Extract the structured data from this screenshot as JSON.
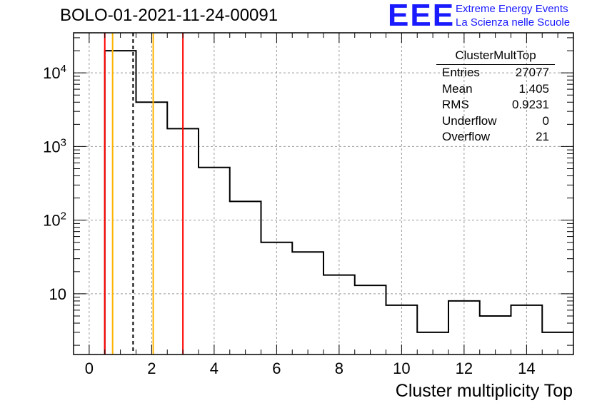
{
  "title": "BOLO-01-2021-11-24-00091",
  "logo": {
    "mark": "EEE",
    "line1": "Extreme Energy Events",
    "line2": "La Scienza nelle Scuole",
    "color": "#1a1aff"
  },
  "stats_box": {
    "title": "ClusterMultTop",
    "rows": [
      {
        "label": "Entries",
        "value": "27077"
      },
      {
        "label": "Mean",
        "value": "1.405"
      },
      {
        "label": "RMS",
        "value": "0.9231"
      },
      {
        "label": "Underflow",
        "value": "0"
      },
      {
        "label": "Overflow",
        "value": "21"
      }
    ]
  },
  "chart_data": {
    "type": "bar",
    "histogram": true,
    "xlabel": "Cluster multiplicity Top",
    "ylabel": "",
    "xlim": [
      -0.5,
      15.5
    ],
    "ylim": [
      1.5,
      35000
    ],
    "log_y": true,
    "grid": true,
    "x_ticks": [
      "0",
      "2",
      "4",
      "6",
      "8",
      "10",
      "12",
      "14"
    ],
    "y_ticks": [
      "10",
      "10^2",
      "10^3",
      "10^4"
    ],
    "bin_edges": [
      0.5,
      1.5,
      2.5,
      3.5,
      4.5,
      5.5,
      6.5,
      7.5,
      8.5,
      9.5,
      10.5,
      11.5,
      12.5,
      13.5,
      14.5,
      15.5
    ],
    "values": [
      20000,
      4000,
      1750,
      520,
      180,
      50,
      37,
      18,
      13,
      7,
      3,
      8,
      5,
      7,
      3
    ],
    "vertical_lines": [
      {
        "x": 0.5,
        "color": "#ff0000",
        "style": "solid"
      },
      {
        "x": 0.75,
        "color": "#ffb300",
        "style": "solid"
      },
      {
        "x": 1.405,
        "color": "#000000",
        "style": "dashed"
      },
      {
        "x": 2.05,
        "color": "#ffb300",
        "style": "solid"
      },
      {
        "x": 3.0,
        "color": "#ff0000",
        "style": "solid"
      }
    ]
  }
}
